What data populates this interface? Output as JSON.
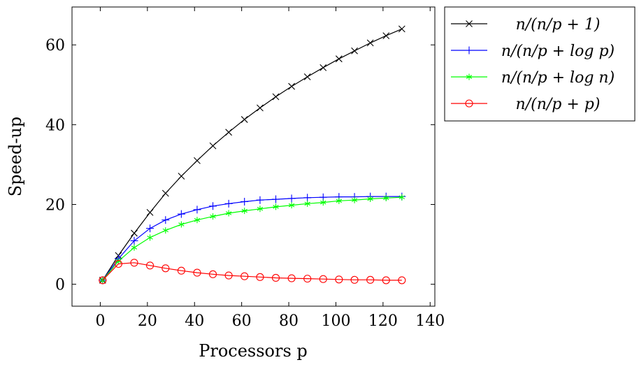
{
  "chart_data": {
    "type": "line",
    "xlabel": "Processors p",
    "ylabel": "Speed-up",
    "xlim": [
      -12,
      142
    ],
    "ylim": [
      -5.5,
      69.5
    ],
    "xticks": [
      0,
      20,
      40,
      60,
      80,
      100,
      120,
      140
    ],
    "yticks": [
      0,
      20,
      40,
      60
    ],
    "grid": false,
    "legend_position": "outside-top-right",
    "x": [
      1,
      7.7,
      14.4,
      21.1,
      27.7,
      34.4,
      41.1,
      47.8,
      54.5,
      61.2,
      67.8,
      74.5,
      81.2,
      87.9,
      94.6,
      101.3,
      107.9,
      114.6,
      121.3,
      128
    ],
    "series": [
      {
        "name": "n/(n/p + 1)",
        "color": "#000000",
        "marker": "x",
        "values": [
          1.0,
          7.2,
          12.8,
          18.0,
          22.8,
          27.1,
          31.0,
          34.7,
          38.1,
          41.3,
          44.2,
          47.0,
          49.6,
          52.0,
          54.3,
          56.5,
          58.5,
          60.5,
          62.3,
          64.0
        ]
      },
      {
        "name": "n/(n/p + log p)",
        "color": "#0000ff",
        "marker": "plus",
        "values": [
          1.0,
          6.4,
          10.9,
          14.0,
          16.1,
          17.6,
          18.7,
          19.6,
          20.2,
          20.7,
          21.1,
          21.3,
          21.5,
          21.7,
          21.8,
          21.9,
          21.9,
          22.0,
          22.0,
          22.0
        ]
      },
      {
        "name": "n/(n/p + log n)",
        "color": "#00ff00",
        "marker": "star",
        "values": [
          1.0,
          5.8,
          9.2,
          11.7,
          13.5,
          15.0,
          16.1,
          17.0,
          17.8,
          18.4,
          18.9,
          19.4,
          19.8,
          20.2,
          20.5,
          20.9,
          21.1,
          21.4,
          21.6,
          21.8
        ]
      },
      {
        "name": "n/(n/p + p)",
        "color": "#ff0000",
        "marker": "circle",
        "values": [
          1.0,
          5.1,
          5.4,
          4.7,
          4.0,
          3.4,
          2.9,
          2.5,
          2.2,
          2.0,
          1.8,
          1.6,
          1.5,
          1.4,
          1.3,
          1.2,
          1.1,
          1.1,
          1.0,
          1.0
        ]
      }
    ]
  }
}
